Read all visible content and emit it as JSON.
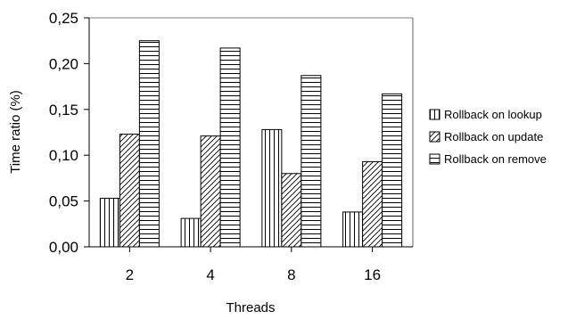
{
  "chart_data": {
    "type": "bar",
    "xlabel": "Threads",
    "ylabel": "Time ratio (%)",
    "categories": [
      "2",
      "4",
      "8",
      "16"
    ],
    "ylim": [
      0,
      0.25
    ],
    "yticks": [
      "0,00",
      "0,05",
      "0,10",
      "0,15",
      "0,20",
      "0,25"
    ],
    "grid": false,
    "legend_position": "right",
    "series": [
      {
        "name": "Rollback on lookup",
        "pattern": "vertical-lines",
        "values": [
          0.053,
          0.031,
          0.128,
          0.038
        ]
      },
      {
        "name": "Rollback on update",
        "pattern": "diagonal-lines",
        "values": [
          0.123,
          0.121,
          0.08,
          0.093
        ]
      },
      {
        "name": "Rollback on remove",
        "pattern": "horizontal-lines",
        "values": [
          0.225,
          0.217,
          0.187,
          0.167
        ]
      }
    ]
  }
}
